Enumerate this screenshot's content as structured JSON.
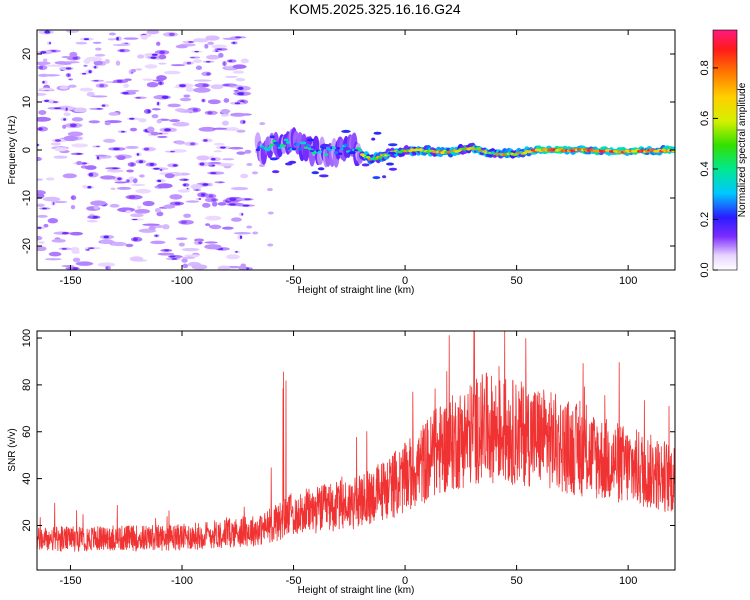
{
  "title": "KOM5.2025.325.16.16.G24",
  "chart_data": [
    {
      "type": "heatmap",
      "title": "KOM5.2025.325.16.16.G24",
      "xlabel": "Height of straight line (km)",
      "ylabel": "Frequency (Hz)",
      "xlim": [
        -165,
        121
      ],
      "ylim": [
        -25,
        25
      ],
      "xticks": [
        -150,
        -100,
        -50,
        0,
        50,
        100
      ],
      "yticks": [
        -20,
        -10,
        0,
        10,
        20
      ],
      "colorbar": {
        "label": "Normalized spectral amplitude",
        "range": [
          0,
          0.95
        ],
        "ticks": [
          0.0,
          0.2,
          0.4,
          0.6,
          0.8
        ]
      },
      "ridge": [
        {
          "x": -65,
          "freq": 0.5
        },
        {
          "x": -55,
          "freq": 1.5
        },
        {
          "x": -45,
          "freq": 0.5
        },
        {
          "x": -35,
          "freq": -0.5
        },
        {
          "x": -25,
          "freq": 0.5
        },
        {
          "x": -15,
          "freq": -2.0
        },
        {
          "x": -5,
          "freq": -0.5
        },
        {
          "x": 5,
          "freq": 0.0
        },
        {
          "x": 20,
          "freq": -0.5
        },
        {
          "x": 30,
          "freq": 0.5
        },
        {
          "x": 40,
          "freq": -0.8
        },
        {
          "x": 50,
          "freq": -0.8
        },
        {
          "x": 60,
          "freq": 0.0
        },
        {
          "x": 80,
          "freq": 0.0
        },
        {
          "x": 100,
          "freq": -0.3
        },
        {
          "x": 120,
          "freq": 0.0
        }
      ]
    },
    {
      "type": "line",
      "xlabel": "Height of straight line (km)",
      "ylabel": "SNR (v/v)",
      "xlim": [
        -165,
        121
      ],
      "ylim": [
        1,
        103
      ],
      "xticks": [
        -150,
        -100,
        -50,
        0,
        50,
        100
      ],
      "yticks": [
        20,
        40,
        60,
        80,
        100
      ],
      "color": "#f03232",
      "trend": [
        {
          "x": -165,
          "snr": 14
        },
        {
          "x": -100,
          "snr": 15
        },
        {
          "x": -65,
          "snr": 18
        },
        {
          "x": -50,
          "snr": 25
        },
        {
          "x": -20,
          "snr": 30
        },
        {
          "x": 0,
          "snr": 40
        },
        {
          "x": 15,
          "snr": 52
        },
        {
          "x": 35,
          "snr": 62
        },
        {
          "x": 60,
          "snr": 58
        },
        {
          "x": 90,
          "snr": 48
        },
        {
          "x": 121,
          "snr": 40
        }
      ]
    }
  ]
}
